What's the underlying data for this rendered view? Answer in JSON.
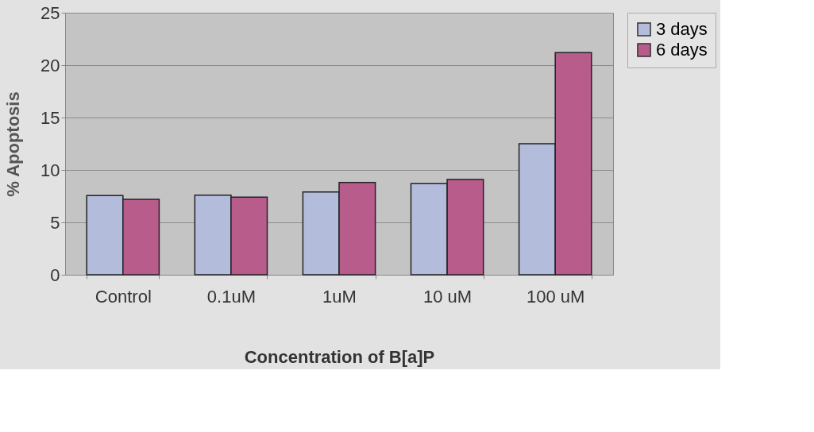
{
  "chart_data": {
    "type": "bar",
    "xlabel": "Concentration of B[a]P",
    "ylabel": "% Apoptosis",
    "categories": [
      "Control",
      "0.1uM",
      "1uM",
      "10 uM",
      "100 uM"
    ],
    "series": [
      {
        "name": "3 days",
        "color": "#b4bcdc",
        "values": [
          7.55,
          7.6,
          7.9,
          8.7,
          12.5
        ]
      },
      {
        "name": "6 days",
        "color": "#b85c8c",
        "values": [
          7.2,
          7.4,
          8.8,
          9.1,
          21.2
        ]
      }
    ],
    "ylim": [
      0,
      25
    ],
    "yticks": [
      0,
      5,
      10,
      15,
      20,
      25
    ],
    "grid": "y",
    "legend": "right"
  }
}
